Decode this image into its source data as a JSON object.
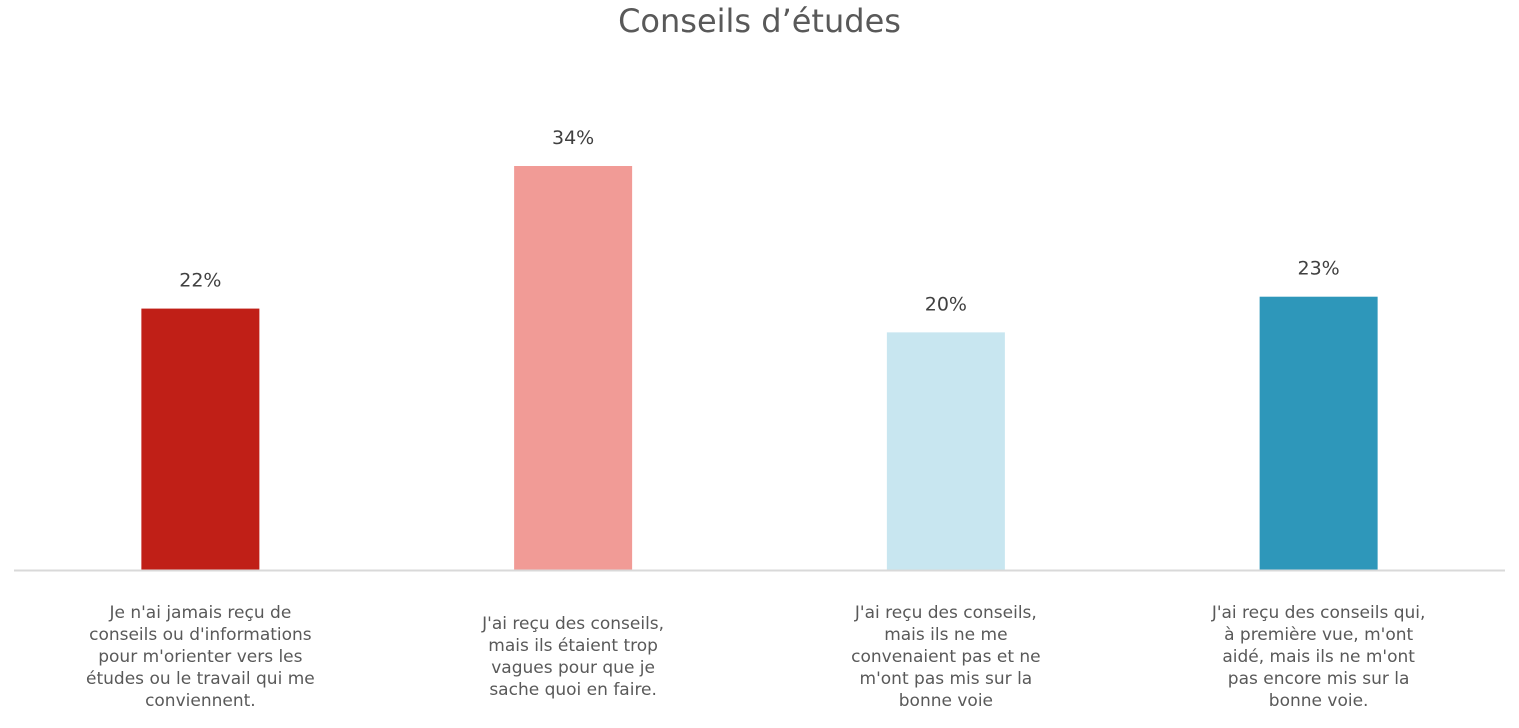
{
  "chart_data": {
    "type": "bar",
    "title": "Conseils d’études",
    "categories": [
      "Je n'ai jamais reçu de conseils ou d'informations pour m'orienter vers les études ou le travail qui me conviennent.",
      "J'ai reçu des conseils, mais ils étaient trop vagues pour que je sache quoi en faire.",
      "J'ai reçu des conseils, mais ils ne me convenaient pas et ne m'ont pas mis sur la bonne voie",
      "J'ai reçu des conseils qui, à première vue, m'ont aidé, mais ils ne m'ont pas encore mis sur la bonne voie."
    ],
    "category_lines": [
      [
        "Je n'ai jamais reçu de",
        "conseils ou d'informations",
        "pour m'orienter vers les",
        "études ou le travail qui me",
        "conviennent."
      ],
      [
        "J'ai reçu des conseils,",
        "mais ils étaient trop",
        "vagues pour que je",
        "sache quoi en faire."
      ],
      [
        "J'ai reçu des conseils,",
        "mais ils ne me",
        "convenaient pas et ne",
        "m'ont pas mis sur la",
        "bonne voie"
      ],
      [
        "J'ai reçu des conseils qui,",
        "à première vue, m'ont",
        "aidé, mais ils ne m'ont",
        "pas encore mis sur la",
        "bonne voie."
      ]
    ],
    "values": [
      22,
      34,
      20,
      23
    ],
    "data_labels": [
      "22%",
      "34%",
      "20%",
      "23%"
    ],
    "colors": [
      "#c01f17",
      "#f19b96",
      "#c8e6f0",
      "#2e97ba"
    ],
    "ylim": [
      0,
      34
    ],
    "grid": false,
    "xlabel": "",
    "ylabel": ""
  }
}
